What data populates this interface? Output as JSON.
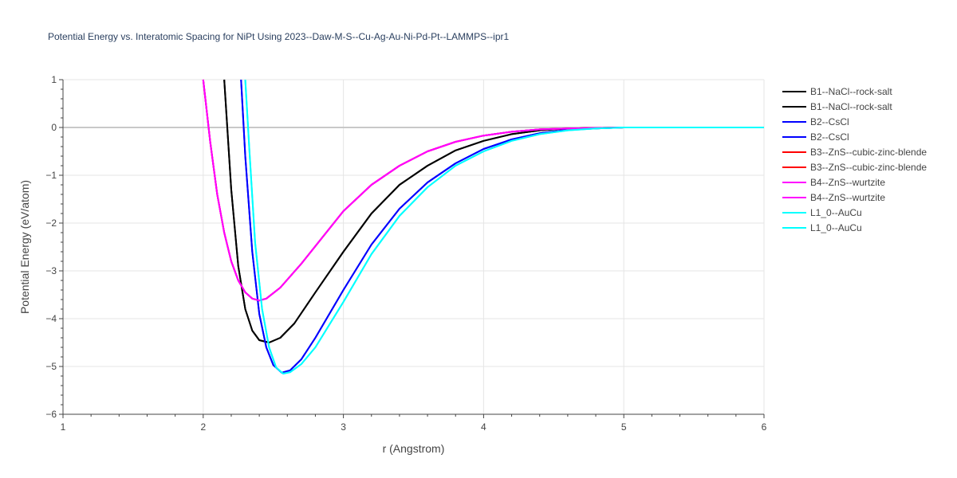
{
  "chart_data": {
    "type": "line",
    "title": "Potential Energy vs. Interatomic Spacing for NiPt Using 2023--Daw-M-S--Cu-Ag-Au-Ni-Pd-Pt--LAMMPS--ipr1",
    "xlabel": "r (Angstrom)",
    "ylabel": "Potential Energy (eV/atom)",
    "xlim": [
      1,
      6
    ],
    "ylim": [
      -6,
      1
    ],
    "x_ticks": [
      1,
      2,
      3,
      4,
      5,
      6
    ],
    "y_ticks": [
      1,
      0,
      -1,
      -2,
      -3,
      -4,
      -5,
      -6
    ],
    "y_tick_labels": [
      "1",
      "0",
      "−1",
      "−2",
      "−3",
      "−4",
      "−5",
      "−6"
    ],
    "grid": true,
    "legend_position": "right",
    "series": [
      {
        "name": "B1--NaCl--rock-salt",
        "color": "#000000",
        "x": [
          2.15,
          2.2,
          2.25,
          2.3,
          2.35,
          2.4,
          2.47,
          2.55,
          2.65,
          2.8,
          3.0,
          3.2,
          3.4,
          3.6,
          3.8,
          4.0,
          4.2,
          4.4,
          4.6,
          4.8,
          5.0,
          5.5,
          6.0
        ],
        "y": [
          1.0,
          -1.3,
          -2.9,
          -3.8,
          -4.25,
          -4.45,
          -4.5,
          -4.4,
          -4.1,
          -3.45,
          -2.6,
          -1.8,
          -1.2,
          -0.8,
          -0.48,
          -0.28,
          -0.14,
          -0.06,
          -0.02,
          -0.01,
          0.0,
          0.0,
          0.0
        ]
      },
      {
        "name": "B1--NaCl--rock-salt",
        "color": "#000000",
        "x": [
          2.15,
          2.2,
          2.25,
          2.3,
          2.35,
          2.4,
          2.47,
          2.55,
          2.65,
          2.8,
          3.0,
          3.2,
          3.4,
          3.6,
          3.8,
          4.0,
          4.2,
          4.4,
          4.6,
          4.8,
          5.0,
          5.5,
          6.0
        ],
        "y": [
          1.0,
          -1.3,
          -2.9,
          -3.8,
          -4.25,
          -4.45,
          -4.5,
          -4.4,
          -4.1,
          -3.45,
          -2.6,
          -1.8,
          -1.2,
          -0.8,
          -0.48,
          -0.28,
          -0.14,
          -0.06,
          -0.02,
          -0.01,
          0.0,
          0.0,
          0.0
        ]
      },
      {
        "name": "B2--CsCl",
        "color": "#0000ff",
        "x": [
          2.27,
          2.3,
          2.35,
          2.4,
          2.45,
          2.5,
          2.56,
          2.62,
          2.7,
          2.8,
          3.0,
          3.2,
          3.4,
          3.6,
          3.8,
          4.0,
          4.2,
          4.4,
          4.6,
          4.8,
          5.0,
          5.5,
          6.0
        ],
        "y": [
          1.0,
          -0.6,
          -2.6,
          -3.9,
          -4.6,
          -4.97,
          -5.13,
          -5.08,
          -4.85,
          -4.4,
          -3.4,
          -2.45,
          -1.7,
          -1.15,
          -0.75,
          -0.45,
          -0.25,
          -0.12,
          -0.05,
          -0.02,
          0.0,
          0.0,
          0.0
        ]
      },
      {
        "name": "B2--CsCl",
        "color": "#0000ff",
        "x": [
          2.27,
          2.3,
          2.35,
          2.4,
          2.45,
          2.5,
          2.56,
          2.62,
          2.7,
          2.8,
          3.0,
          3.2,
          3.4,
          3.6,
          3.8,
          4.0,
          4.2,
          4.4,
          4.6,
          4.8,
          5.0,
          5.5,
          6.0
        ],
        "y": [
          1.0,
          -0.6,
          -2.6,
          -3.9,
          -4.6,
          -4.97,
          -5.13,
          -5.08,
          -4.85,
          -4.4,
          -3.4,
          -2.45,
          -1.7,
          -1.15,
          -0.75,
          -0.45,
          -0.25,
          -0.12,
          -0.05,
          -0.02,
          0.0,
          0.0,
          0.0
        ]
      },
      {
        "name": "B3--ZnS--cubic-zinc-blende",
        "color": "#ff0000",
        "x": [
          2.0,
          2.05,
          2.1,
          2.15,
          2.2,
          2.25,
          2.3,
          2.35,
          2.4,
          2.45,
          2.55,
          2.7,
          2.85,
          3.0,
          3.2,
          3.4,
          3.6,
          3.8,
          4.0,
          4.2,
          4.4,
          4.6,
          4.8,
          5.0,
          5.5,
          6.0
        ],
        "y": [
          1.0,
          -0.3,
          -1.4,
          -2.2,
          -2.8,
          -3.2,
          -3.45,
          -3.58,
          -3.62,
          -3.58,
          -3.35,
          -2.85,
          -2.3,
          -1.75,
          -1.2,
          -0.8,
          -0.5,
          -0.3,
          -0.17,
          -0.09,
          -0.04,
          -0.02,
          -0.01,
          0.0,
          0.0,
          0.0
        ]
      },
      {
        "name": "B3--ZnS--cubic-zinc-blende",
        "color": "#ff0000",
        "x": [
          2.0,
          2.05,
          2.1,
          2.15,
          2.2,
          2.25,
          2.3,
          2.35,
          2.4,
          2.45,
          2.55,
          2.7,
          2.85,
          3.0,
          3.2,
          3.4,
          3.6,
          3.8,
          4.0,
          4.2,
          4.4,
          4.6,
          4.8,
          5.0,
          5.5,
          6.0
        ],
        "y": [
          1.0,
          -0.3,
          -1.4,
          -2.2,
          -2.8,
          -3.2,
          -3.45,
          -3.58,
          -3.62,
          -3.58,
          -3.35,
          -2.85,
          -2.3,
          -1.75,
          -1.2,
          -0.8,
          -0.5,
          -0.3,
          -0.17,
          -0.09,
          -0.04,
          -0.02,
          -0.01,
          0.0,
          0.0,
          0.0
        ]
      },
      {
        "name": "B4--ZnS--wurtzite",
        "color": "#ff00ff",
        "x": [
          2.0,
          2.05,
          2.1,
          2.15,
          2.2,
          2.25,
          2.3,
          2.35,
          2.4,
          2.45,
          2.55,
          2.7,
          2.85,
          3.0,
          3.2,
          3.4,
          3.6,
          3.8,
          4.0,
          4.2,
          4.4,
          4.6,
          4.8,
          5.0,
          5.5,
          6.0
        ],
        "y": [
          1.0,
          -0.3,
          -1.4,
          -2.2,
          -2.8,
          -3.2,
          -3.45,
          -3.58,
          -3.62,
          -3.58,
          -3.35,
          -2.85,
          -2.3,
          -1.75,
          -1.2,
          -0.8,
          -0.5,
          -0.3,
          -0.17,
          -0.09,
          -0.04,
          -0.02,
          -0.01,
          0.0,
          0.0,
          0.0
        ]
      },
      {
        "name": "B4--ZnS--wurtzite",
        "color": "#ff00ff",
        "x": [
          2.0,
          2.05,
          2.1,
          2.15,
          2.2,
          2.25,
          2.3,
          2.35,
          2.4,
          2.45,
          2.55,
          2.7,
          2.85,
          3.0,
          3.2,
          3.4,
          3.6,
          3.8,
          4.0,
          4.2,
          4.4,
          4.6,
          4.8,
          5.0,
          5.5,
          6.0
        ],
        "y": [
          1.0,
          -0.3,
          -1.4,
          -2.2,
          -2.8,
          -3.2,
          -3.45,
          -3.58,
          -3.62,
          -3.58,
          -3.35,
          -2.85,
          -2.3,
          -1.75,
          -1.2,
          -0.8,
          -0.5,
          -0.3,
          -0.17,
          -0.09,
          -0.04,
          -0.02,
          -0.01,
          0.0,
          0.0,
          0.0
        ]
      },
      {
        "name": "L1_0--AuCu",
        "color": "#00ffff",
        "x": [
          2.3,
          2.33,
          2.37,
          2.42,
          2.47,
          2.52,
          2.57,
          2.62,
          2.7,
          2.8,
          3.0,
          3.2,
          3.4,
          3.6,
          3.8,
          4.0,
          4.2,
          4.4,
          4.6,
          4.8,
          5.0,
          5.5,
          6.0
        ],
        "y": [
          1.0,
          -0.5,
          -2.4,
          -3.8,
          -4.6,
          -5.02,
          -5.15,
          -5.12,
          -4.95,
          -4.6,
          -3.65,
          -2.65,
          -1.85,
          -1.25,
          -0.8,
          -0.5,
          -0.28,
          -0.14,
          -0.06,
          -0.02,
          0.0,
          0.0,
          0.0
        ]
      },
      {
        "name": "L1_0--AuCu",
        "color": "#00ffff",
        "x": [
          2.3,
          2.33,
          2.37,
          2.42,
          2.47,
          2.52,
          2.57,
          2.62,
          2.7,
          2.8,
          3.0,
          3.2,
          3.4,
          3.6,
          3.8,
          4.0,
          4.2,
          4.4,
          4.6,
          4.8,
          5.0,
          5.5,
          6.0
        ],
        "y": [
          1.0,
          -0.5,
          -2.4,
          -3.8,
          -4.6,
          -5.02,
          -5.15,
          -5.12,
          -4.95,
          -4.6,
          -3.65,
          -2.65,
          -1.85,
          -1.25,
          -0.8,
          -0.5,
          -0.28,
          -0.14,
          -0.06,
          -0.02,
          0.0,
          0.0,
          0.0
        ]
      }
    ]
  }
}
